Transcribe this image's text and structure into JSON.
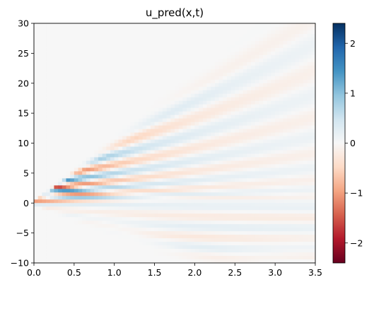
{
  "chart_data": {
    "type": "heatmap",
    "title": "u_pred(x,t)",
    "xlabel": "",
    "ylabel": "",
    "xlim": [
      0.0,
      3.5
    ],
    "ylim": [
      -10,
      30
    ],
    "xticks": [
      "0.0",
      "0.5",
      "1.0",
      "1.5",
      "2.0",
      "2.5",
      "3.0",
      "3.5"
    ],
    "yticks": [
      "30",
      "25",
      "20",
      "15",
      "10",
      "5",
      "0",
      "−5",
      "−10"
    ],
    "colorbar": {
      "colormap": "RdBu",
      "range": [
        -2.4,
        2.4
      ],
      "ticks": [
        "2",
        "1",
        "0",
        "−1",
        "−2"
      ],
      "low_color": "#67001f",
      "mid_color": "#f7f7f7",
      "high_color": "#053061"
    },
    "grid": false
  }
}
